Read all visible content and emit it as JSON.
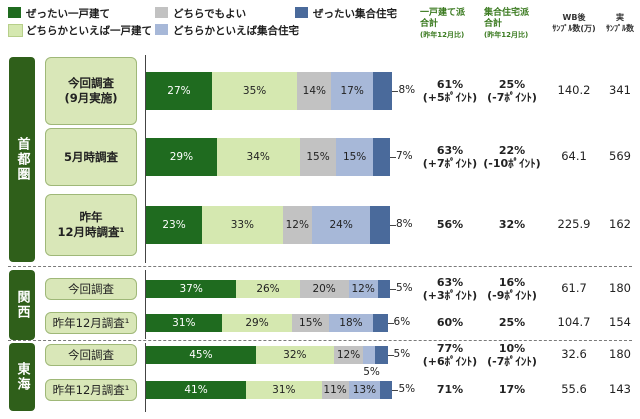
{
  "legend": [
    {
      "label": "ぜったい一戸建て",
      "color": "#1f6b1f"
    },
    {
      "label": "どちらかといえば一戸建て",
      "color": "#d5e8b0"
    },
    {
      "label": "どちらでもよい",
      "color": "#c2c2c2"
    },
    {
      "label": "どちらかといえば集合住宅",
      "color": "#a7b8d8"
    },
    {
      "label": "ぜったい集合住宅",
      "color": "#4a6a9b"
    }
  ],
  "headers": {
    "h1_line1": "一戸建て派",
    "h1_line2": "合計",
    "h1_sub": "(昨年12月比)",
    "h2_line1": "集合住宅派",
    "h2_line2": "合計",
    "h2_sub": "(昨年12月比)",
    "h3_line1": "WB後",
    "h3_line2": "ｻﾝﾌﾟﾙ数(万)",
    "h4_line1": "実",
    "h4_line2": "ｻﾝﾌﾟﾙ数"
  },
  "regions": [
    "首都圏",
    "関西",
    "東海"
  ],
  "chart_data": {
    "type": "bar",
    "stacked": true,
    "orientation": "horizontal",
    "series_names": [
      "ぜったい一戸建て",
      "どちらかといえば一戸建て",
      "どちらでもよい",
      "どちらかといえば集合住宅",
      "ぜったい集合住宅"
    ],
    "rows": [
      {
        "label": "今回調査\n(9月実施)",
        "values": [
          27,
          35,
          14,
          17,
          8
        ],
        "labels": [
          "27%",
          "35%",
          "14%",
          "17%",
          "8%"
        ],
        "house_total": "61%",
        "house_diff": "(+5ﾎﾟｲﾝﾄ)",
        "apt_total": "25%",
        "apt_diff": "(-7ﾎﾟｲﾝﾄ)",
        "wb": "140.2",
        "n": "341"
      },
      {
        "label": "5月時調査",
        "values": [
          29,
          34,
          15,
          15,
          7
        ],
        "labels": [
          "29%",
          "34%",
          "15%",
          "15%",
          "7%"
        ],
        "house_total": "63%",
        "house_diff": "(+7ﾎﾟｲﾝﾄ)",
        "apt_total": "22%",
        "apt_diff": "(-10ﾎﾟｲﾝﾄ)",
        "wb": "64.1",
        "n": "569"
      },
      {
        "label": "昨年\n12月時調査¹",
        "values": [
          23,
          33,
          12,
          24,
          8
        ],
        "labels": [
          "23%",
          "33%",
          "12%",
          "24%",
          "8%"
        ],
        "house_total": "56%",
        "house_diff": "",
        "apt_total": "32%",
        "apt_diff": "",
        "wb": "225.9",
        "n": "162"
      },
      {
        "label": "今回調査",
        "values": [
          37,
          26,
          20,
          12,
          5
        ],
        "labels": [
          "37%",
          "26%",
          "20%",
          "12%",
          "5%"
        ],
        "house_total": "63%",
        "house_diff": "(+3ﾎﾟｲﾝﾄ)",
        "apt_total": "16%",
        "apt_diff": "(-9ﾎﾟｲﾝﾄ)",
        "wb": "61.7",
        "n": "180"
      },
      {
        "label": "昨年12月調査¹",
        "values": [
          31,
          29,
          15,
          18,
          6
        ],
        "labels": [
          "31%",
          "29%",
          "15%",
          "18%",
          "6%"
        ],
        "house_total": "60%",
        "house_diff": "",
        "apt_total": "25%",
        "apt_diff": "",
        "wb": "104.7",
        "n": "154"
      },
      {
        "label": "今回調査",
        "values": [
          45,
          32,
          12,
          5,
          5
        ],
        "labels": [
          "45%",
          "32%",
          "12%",
          "5%",
          "5%"
        ],
        "house_total": "77%",
        "house_diff": "(+6ﾎﾟｲﾝﾄ)",
        "apt_total": "10%",
        "apt_diff": "(-7ﾎﾟｲﾝﾄ)",
        "wb": "32.6",
        "n": "180"
      },
      {
        "label": "昨年12月調査¹",
        "values": [
          41,
          31,
          11,
          13,
          5
        ],
        "labels": [
          "41%",
          "31%",
          "11%",
          "13%",
          "5%"
        ],
        "house_total": "71%",
        "house_diff": "",
        "apt_total": "17%",
        "apt_diff": "",
        "wb": "55.6",
        "n": "143"
      }
    ]
  }
}
